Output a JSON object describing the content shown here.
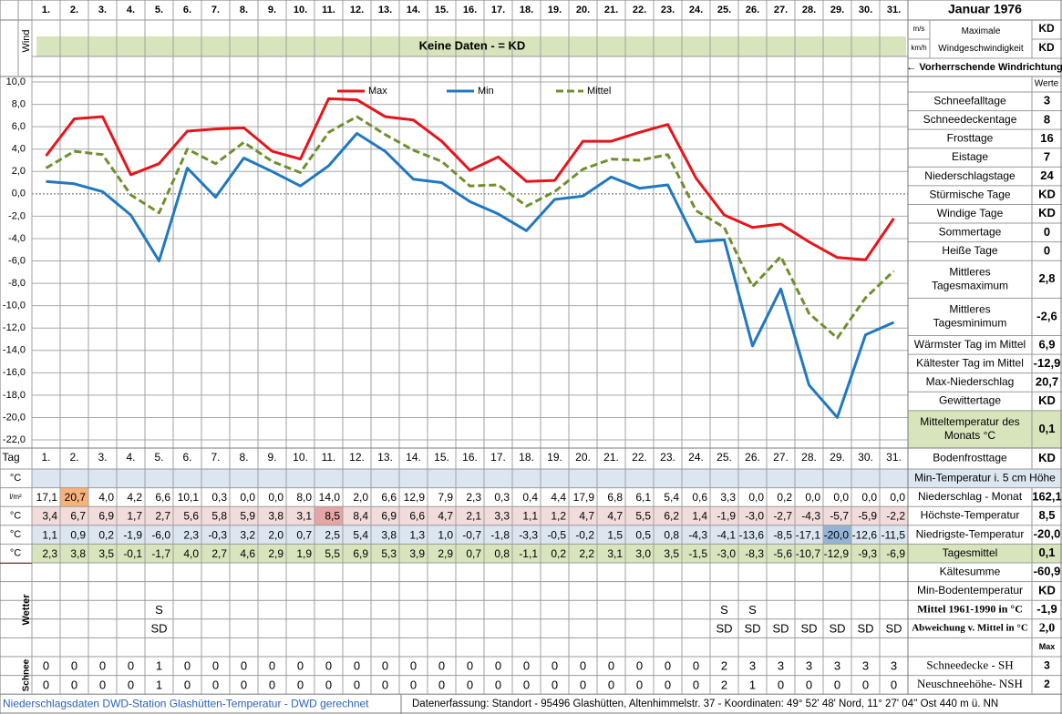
{
  "header": {
    "title": "Januar 1976"
  },
  "wind": {
    "label": "Wind",
    "units": [
      "m/s",
      "km/h"
    ],
    "banner": "Keine Daten -  = KD",
    "max_label": [
      "Maximale",
      "Windgeschwindigkeit"
    ],
    "max_values": [
      "KD",
      "KD"
    ],
    "direction": "← Vorherrschende Windrichtung"
  },
  "chart_data": {
    "type": "line",
    "categories": [
      "1.",
      "2.",
      "3.",
      "4.",
      "5.",
      "6.",
      "7.",
      "8.",
      "9.",
      "10.",
      "11.",
      "12.",
      "13.",
      "14.",
      "15.",
      "16.",
      "17.",
      "18.",
      "19.",
      "20.",
      "21.",
      "22.",
      "23.",
      "24.",
      "25.",
      "26.",
      "27.",
      "28.",
      "29.",
      "30.",
      "31."
    ],
    "series": [
      {
        "name": "Max",
        "color": "#e8141b",
        "values": [
          3.4,
          6.7,
          6.9,
          1.7,
          2.7,
          5.6,
          5.8,
          5.9,
          3.8,
          3.1,
          8.5,
          8.4,
          6.9,
          6.6,
          4.7,
          2.1,
          3.3,
          1.1,
          1.2,
          4.7,
          4.7,
          5.5,
          6.2,
          1.4,
          -1.9,
          -3.0,
          -2.7,
          -4.3,
          -5.7,
          -5.9,
          -2.2
        ]
      },
      {
        "name": "Min",
        "color": "#1f78c1",
        "values": [
          1.1,
          0.9,
          0.2,
          -1.9,
          -6.0,
          2.3,
          -0.3,
          3.2,
          2.0,
          0.7,
          2.5,
          5.4,
          3.8,
          1.3,
          1.0,
          -0.7,
          -1.8,
          -3.3,
          -0.5,
          -0.2,
          1.5,
          0.5,
          0.8,
          -4.3,
          -4.1,
          -13.6,
          -8.5,
          -17.1,
          -20.0,
          -12.6,
          -11.5
        ]
      },
      {
        "name": "Mittel",
        "color": "#6f8f2e",
        "dashed": true,
        "values": [
          2.3,
          3.8,
          3.5,
          -0.1,
          -1.7,
          4.0,
          2.7,
          4.6,
          2.9,
          1.9,
          5.5,
          6.9,
          5.3,
          3.9,
          2.9,
          0.7,
          0.8,
          -1.1,
          0.2,
          2.2,
          3.1,
          3.0,
          3.5,
          -1.5,
          -3.0,
          -8.3,
          -5.6,
          -10.7,
          -12.9,
          -9.3,
          -6.9
        ]
      }
    ],
    "ylim": [
      -22,
      10
    ],
    "yticks": [
      {
        "value": 10,
        "label": "10,0"
      },
      {
        "value": 8,
        "label": "8,0"
      },
      {
        "value": 6,
        "label": "6,0"
      },
      {
        "value": 4,
        "label": "4,0"
      },
      {
        "value": 2,
        "label": "2,0"
      },
      {
        "value": 0,
        "label": "0,0"
      },
      {
        "value": -2,
        "label": "-2,0"
      },
      {
        "value": -4,
        "label": "-4,0"
      },
      {
        "value": -6,
        "label": "-6,0"
      },
      {
        "value": -8,
        "label": "-8,0"
      },
      {
        "value": -10,
        "label": "-10,0"
      },
      {
        "value": -12,
        "label": "-12,0"
      },
      {
        "value": -14,
        "label": "-14,0"
      },
      {
        "value": -16,
        "label": "-16,0"
      },
      {
        "value": -18,
        "label": "-18,0"
      },
      {
        "value": -20,
        "label": "-20,0"
      },
      {
        "value": -22,
        "label": "-22,0"
      }
    ],
    "grid": true,
    "legend": "top"
  },
  "stats": {
    "header": "Werte",
    "rows": [
      {
        "label": "Schneefalltage",
        "value": "3"
      },
      {
        "label": "Schneedeckentage",
        "value": "8"
      },
      {
        "label": "Frosttage",
        "value": "16"
      },
      {
        "label": "Eistage",
        "value": "7"
      },
      {
        "label": "Niederschlagstage",
        "value": "24"
      },
      {
        "label": "Stürmische Tage",
        "value": "KD"
      },
      {
        "label": "Windige Tage",
        "value": "KD"
      },
      {
        "label": "Sommertage",
        "value": "0"
      },
      {
        "label": "Heiße Tage",
        "value": "0"
      },
      {
        "label": [
          "Mittleres",
          "Tagesmaximum"
        ],
        "value": "2,8"
      },
      {
        "label": [
          "Mittleres",
          "Tagesminimum"
        ],
        "value": "-2,6"
      },
      {
        "label": "Wärmster Tag im Mittel",
        "value": "6,9"
      },
      {
        "label": "Kältester Tag im Mittel",
        "value": "-12,9"
      },
      {
        "label": "Max-Niederschlag",
        "value": "20,7"
      },
      {
        "label": "Gewittertage",
        "value": "KD"
      },
      {
        "label": [
          "Mitteltemperatur des",
          "Monats °C"
        ],
        "value": "0,1",
        "color": "#d8e4bc"
      },
      {
        "label": "Bodenfrosttage",
        "value": "KD"
      }
    ]
  },
  "table": {
    "day_label": "Tag",
    "rows": [
      {
        "unit": "°C",
        "label": "Min-Temperatur i. 5 cm Höhe",
        "color": "#dce6f1"
      },
      {
        "unit": "l/m²",
        "label": "Niederschlag - Monat",
        "value": "162,1",
        "highlight": 1,
        "highlight_color": "#f7b27a",
        "cells": [
          "17,1",
          "20,7",
          "4,0",
          "4,2",
          "6,6",
          "10,1",
          "0,3",
          "0,0",
          "0,0",
          "8,0",
          "14,0",
          "2,0",
          "6,6",
          "12,9",
          "7,9",
          "2,3",
          "0,3",
          "0,4",
          "4,4",
          "17,9",
          "6,8",
          "6,1",
          "5,4",
          "0,6",
          "3,3",
          "0,0",
          "0,2",
          "0,0",
          "0,0",
          "0,0",
          "0,0"
        ]
      },
      {
        "unit": "°C",
        "label": "Höchste-Temperatur",
        "value": "8,5",
        "color": "#f2dcdb",
        "highlight": 10,
        "highlight_color": "#e6a5a5",
        "cells": [
          "3,4",
          "6,7",
          "6,9",
          "1,7",
          "2,7",
          "5,6",
          "5,8",
          "5,9",
          "3,8",
          "3,1",
          "8,5",
          "8,4",
          "6,9",
          "6,6",
          "4,7",
          "2,1",
          "3,3",
          "1,1",
          "1,2",
          "4,7",
          "4,7",
          "5,5",
          "6,2",
          "1,4",
          "-1,9",
          "-3,0",
          "-2,7",
          "-4,3",
          "-5,7",
          "-5,9",
          "-2,2"
        ]
      },
      {
        "unit": "°C",
        "label": "Niedrigste-Temperatur",
        "value": "-20,0",
        "color": "#dce6f1",
        "highlight": 28,
        "highlight_color": "#95b3d7",
        "cells": [
          "1,1",
          "0,9",
          "0,2",
          "-1,9",
          "-6,0",
          "2,3",
          "-0,3",
          "3,2",
          "2,0",
          "0,7",
          "2,5",
          "5,4",
          "3,8",
          "1,3",
          "1,0",
          "-0,7",
          "-1,8",
          "-3,3",
          "-0,5",
          "-0,2",
          "1,5",
          "0,5",
          "0,8",
          "-4,3",
          "-4,1",
          "-13,6",
          "-8,5",
          "-17,1",
          "-20,0",
          "-12,6",
          "-11,5"
        ]
      },
      {
        "unit": "°C",
        "label": "Tagesmittel",
        "value": "0,1",
        "color": "#d8e4bc",
        "cells": [
          "2,3",
          "3,8",
          "3,5",
          "-0,1",
          "-1,7",
          "4,0",
          "2,7",
          "4,6",
          "2,9",
          "1,9",
          "5,5",
          "6,9",
          "5,3",
          "3,9",
          "2,9",
          "0,7",
          "0,8",
          "-1,1",
          "0,2",
          "2,2",
          "3,1",
          "3,0",
          "3,5",
          "-1,5",
          "-3,0",
          "-8,3",
          "-5,6",
          "-10,7",
          "-12,9",
          "-9,3",
          "-6,9"
        ]
      }
    ]
  },
  "extra": {
    "rows": [
      {
        "label": "Kältesumme",
        "value": "-60,9"
      },
      {
        "label": "Min-Bodentemperatur",
        "value": "KD"
      },
      {
        "label": "Mittel 1961-1990 in °C",
        "value": "-1,9"
      },
      {
        "label": "Abweichung v. Mittel in °C",
        "value": "2,0"
      },
      {
        "value": "Max"
      }
    ]
  },
  "wetter": {
    "label": "Wetter",
    "rows": [
      [
        null,
        null,
        null,
        null,
        "S",
        null,
        null,
        null,
        null,
        null,
        null,
        null,
        null,
        null,
        null,
        null,
        null,
        null,
        null,
        null,
        null,
        null,
        null,
        null,
        "S",
        "S",
        null,
        null,
        null,
        null,
        null
      ],
      [
        null,
        null,
        null,
        null,
        "SD",
        null,
        null,
        null,
        null,
        null,
        null,
        null,
        null,
        null,
        null,
        null,
        null,
        null,
        null,
        null,
        null,
        null,
        null,
        null,
        "SD",
        "SD",
        "SD",
        "SD",
        "SD",
        "SD",
        "SD"
      ]
    ]
  },
  "schnee": {
    "label": "Schnee",
    "rows": [
      {
        "label": "Schneedecke -  SH",
        "value": "3",
        "values": [
          0,
          0,
          0,
          0,
          1,
          0,
          0,
          0,
          0,
          0,
          0,
          0,
          0,
          0,
          0,
          0,
          0,
          0,
          0,
          0,
          0,
          0,
          0,
          0,
          2,
          3,
          3,
          3,
          3,
          3,
          3
        ]
      },
      {
        "label": "Neuschneehöhe- NSH",
        "value": "2",
        "values": [
          0,
          0,
          0,
          0,
          1,
          0,
          0,
          0,
          0,
          0,
          0,
          0,
          0,
          0,
          0,
          0,
          0,
          0,
          0,
          0,
          0,
          0,
          0,
          0,
          2,
          1,
          0,
          0,
          0,
          0,
          0
        ]
      }
    ]
  },
  "footer": {
    "source": "Niederschlagsdaten DWD-Station Glashütten-Temperatur -  DWD gerechnet",
    "location": "Datenerfassung: Standort - 95496 Glashütten, Altenhimmelstr. 37 - Koordinaten: 49° 52' 48' Nord,  11° 27' 04'' Ost  440 m ü. NN"
  }
}
